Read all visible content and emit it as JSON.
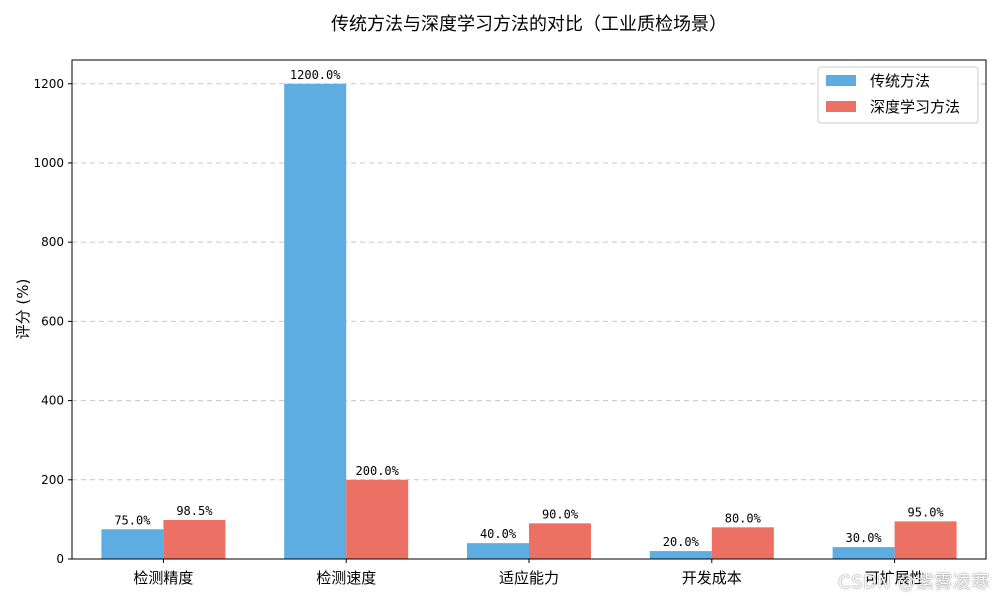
{
  "watermark": "CSDN @紫雾凌寒",
  "chart_data": {
    "type": "bar",
    "title": "传统方法与深度学习方法的对比（工业质检场景）",
    "xlabel": "",
    "ylabel": "评分 (%)",
    "categories": [
      "检测精度",
      "检测速度",
      "适应能力",
      "开发成本",
      "可扩展性"
    ],
    "series": [
      {
        "name": "传统方法",
        "color": "#5DADE2",
        "values": [
          75.0,
          1200.0,
          40.0,
          20.0,
          30.0
        ],
        "labels": [
          "75.0%",
          "1200.0%",
          "40.0%",
          "20.0%",
          "30.0%"
        ]
      },
      {
        "name": "深度学习方法",
        "color": "#EC7063",
        "values": [
          98.5,
          200.0,
          90.0,
          80.0,
          95.0
        ],
        "labels": [
          "98.5%",
          "200.0%",
          "90.0%",
          "80.0%",
          "95.0%"
        ]
      }
    ],
    "ylim": [
      0,
      1260
    ],
    "yticks": [
      0,
      200,
      400,
      600,
      800,
      1000,
      1200
    ],
    "grid": true,
    "legend_position": "top-right"
  }
}
